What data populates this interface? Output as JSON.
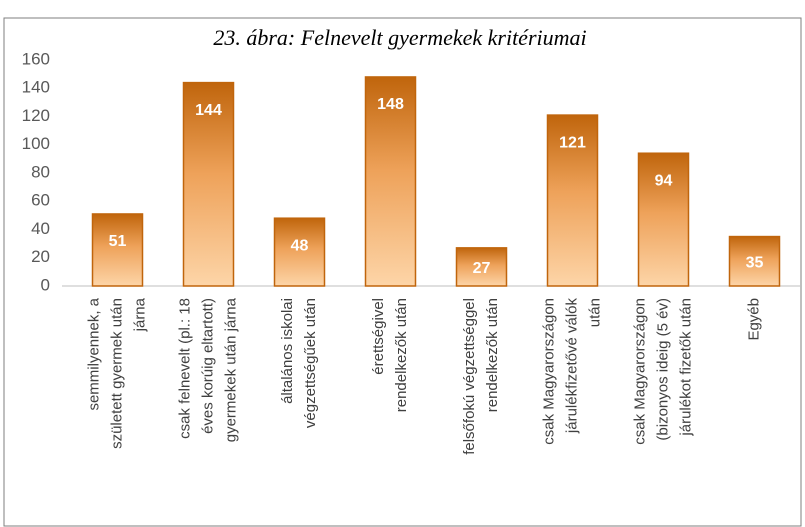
{
  "chart_data": {
    "type": "bar",
    "title": "23. ábra: Felnevelt gyermekek kritériumai",
    "categories": [
      "semmilyennek, a\nszületett gyermek után\njárna",
      "csak felnevelt (pl.: 18\néves korúig eltartott)\ngyermekek után járna",
      "általános iskolai\nvégzettségűek után",
      "érettségivel\nrendelkezők után",
      "felsőfokú végzettséggel\nrendelkezők után",
      "csak Magyarországon\njárulékfizetővé válók\nután",
      "csak Magyarországon\n(bizonyos ideig (5 év)\njárulékot fizetők után",
      "Egyéb"
    ],
    "values": [
      51,
      144,
      48,
      148,
      27,
      121,
      94,
      35
    ],
    "color": "#c0650c",
    "ylim": [
      0,
      160
    ],
    "yticks": [
      0,
      20,
      40,
      60,
      80,
      100,
      120,
      140,
      160
    ],
    "grid": false
  }
}
